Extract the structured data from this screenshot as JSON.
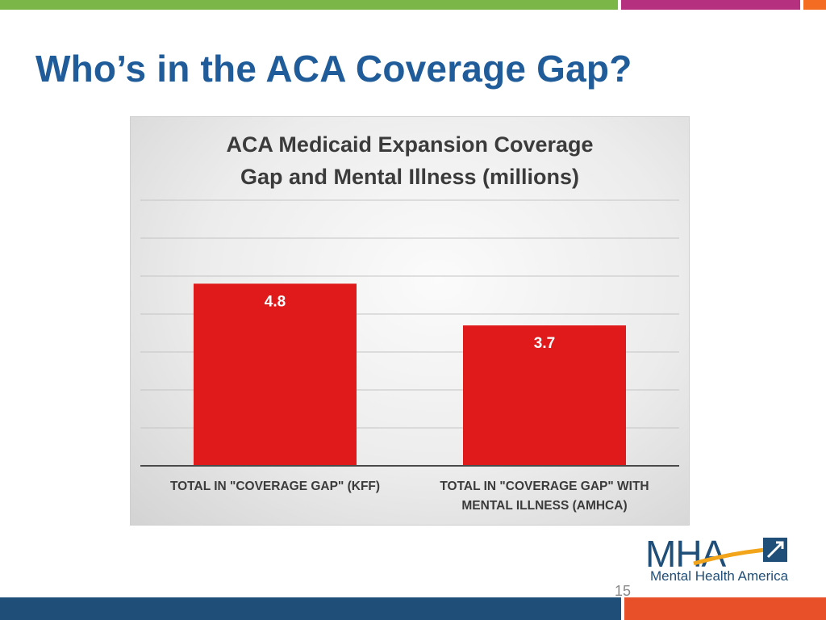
{
  "slide": {
    "title": "Who’s in the ACA Coverage Gap?",
    "page_number": "15"
  },
  "logo": {
    "mark": "MHA",
    "name": "Mental Health America"
  },
  "colors": {
    "title": "#1f5c99",
    "bar": "#e0191b",
    "top_bar_green": "#7ab648",
    "top_bar_magenta": "#b5307e",
    "top_bar_orange": "#f36c21",
    "bottom_bar_blue": "#1f4e79",
    "bottom_bar_orange": "#e8502a"
  },
  "chart_data": {
    "type": "bar",
    "title": "ACA Medicaid Expansion Coverage\nGap and Mental Illness (millions)",
    "categories": [
      "TOTAL IN \"COVERAGE GAP\" (KFF)",
      "TOTAL IN \"COVERAGE GAP\" WITH\nMENTAL ILLNESS (AMHCA)"
    ],
    "values": [
      4.8,
      3.7
    ],
    "data_labels": [
      "4.8",
      "3.7"
    ],
    "xlabel": "",
    "ylabel": "",
    "ylim": [
      0,
      7
    ],
    "grid": true,
    "legend": "none"
  }
}
